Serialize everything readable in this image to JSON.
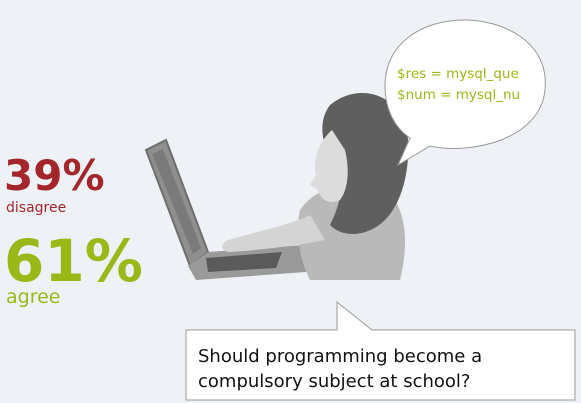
{
  "stats": [
    {
      "value": "39%",
      "label": "disagree"
    },
    {
      "value": "61%",
      "label": "agree"
    }
  ],
  "speech_bubble": {
    "lines": [
      "$res = mysql_que",
      "$num = mysql_nu"
    ]
  },
  "question": {
    "lines": [
      "Should programming become a",
      "compulsory subject at school?"
    ]
  }
}
